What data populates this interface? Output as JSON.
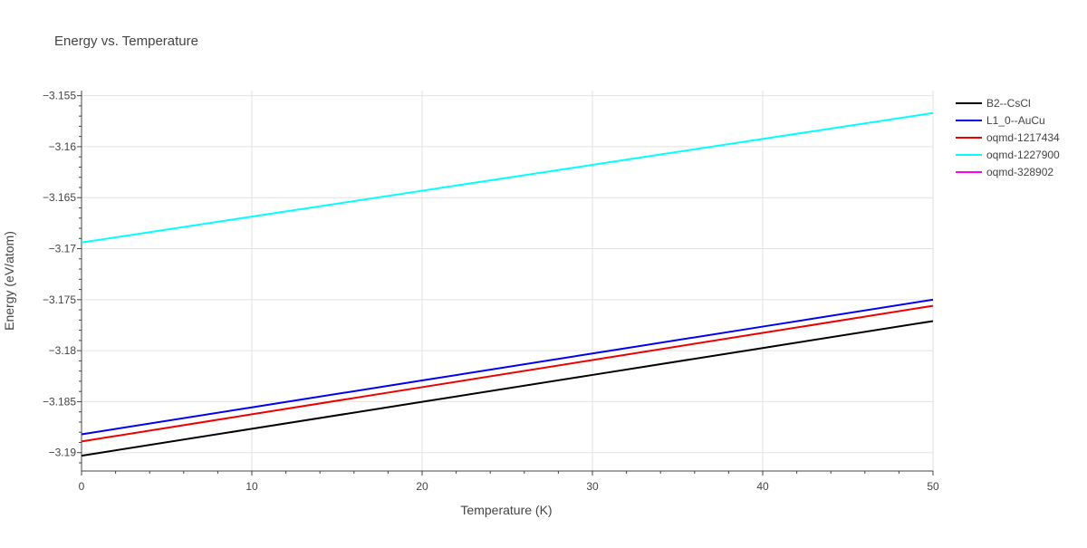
{
  "chart_data": {
    "type": "line",
    "title": "Energy vs. Temperature",
    "xlabel": "Temperature (K)",
    "ylabel": "Energy (eV/atom)",
    "xlim": [
      0,
      50
    ],
    "ylim": [
      -3.1918,
      -3.1545
    ],
    "x_ticks": [
      0,
      10,
      20,
      30,
      40,
      50
    ],
    "x_tick_labels": [
      "0",
      "10",
      "20",
      "30",
      "40",
      "50"
    ],
    "y_ticks": [
      -3.19,
      -3.185,
      -3.18,
      -3.175,
      -3.17,
      -3.165,
      -3.16,
      -3.155
    ],
    "y_tick_labels": [
      "−3.19",
      "−3.185",
      "−3.18",
      "−3.175",
      "−3.17",
      "−3.165",
      "−3.16",
      "−3.155"
    ],
    "grid": true,
    "legend_position": "top-right-outside",
    "series": [
      {
        "name": "B2--CsCl",
        "color": "#000000",
        "x": [
          0,
          10,
          20,
          30,
          40,
          50
        ],
        "y": [
          -3.1903,
          -3.18766,
          -3.18502,
          -3.18238,
          -3.17974,
          -3.1771
        ]
      },
      {
        "name": "L1_0--AuCu",
        "color": "#0000ee",
        "x": [
          0,
          10,
          20,
          30,
          40,
          50
        ],
        "y": [
          -3.1882,
          -3.18556,
          -3.18292,
          -3.18028,
          -3.17764,
          -3.175
        ]
      },
      {
        "name": "oqmd-1217434",
        "color": "#ee0000",
        "x": [
          0,
          10,
          20,
          30,
          40,
          50
        ],
        "y": [
          -3.1889,
          -3.18624,
          -3.18358,
          -3.18092,
          -3.17826,
          -3.1756
        ]
      },
      {
        "name": "oqmd-1227900",
        "color": "#00ffff",
        "x": [
          0,
          10,
          20,
          30,
          40,
          50
        ],
        "y": [
          -3.1694,
          -3.16686,
          -3.16432,
          -3.16178,
          -3.15924,
          -3.1567
        ]
      },
      {
        "name": "oqmd-328902",
        "color": "#ff00ff",
        "x": [],
        "y": []
      }
    ]
  }
}
